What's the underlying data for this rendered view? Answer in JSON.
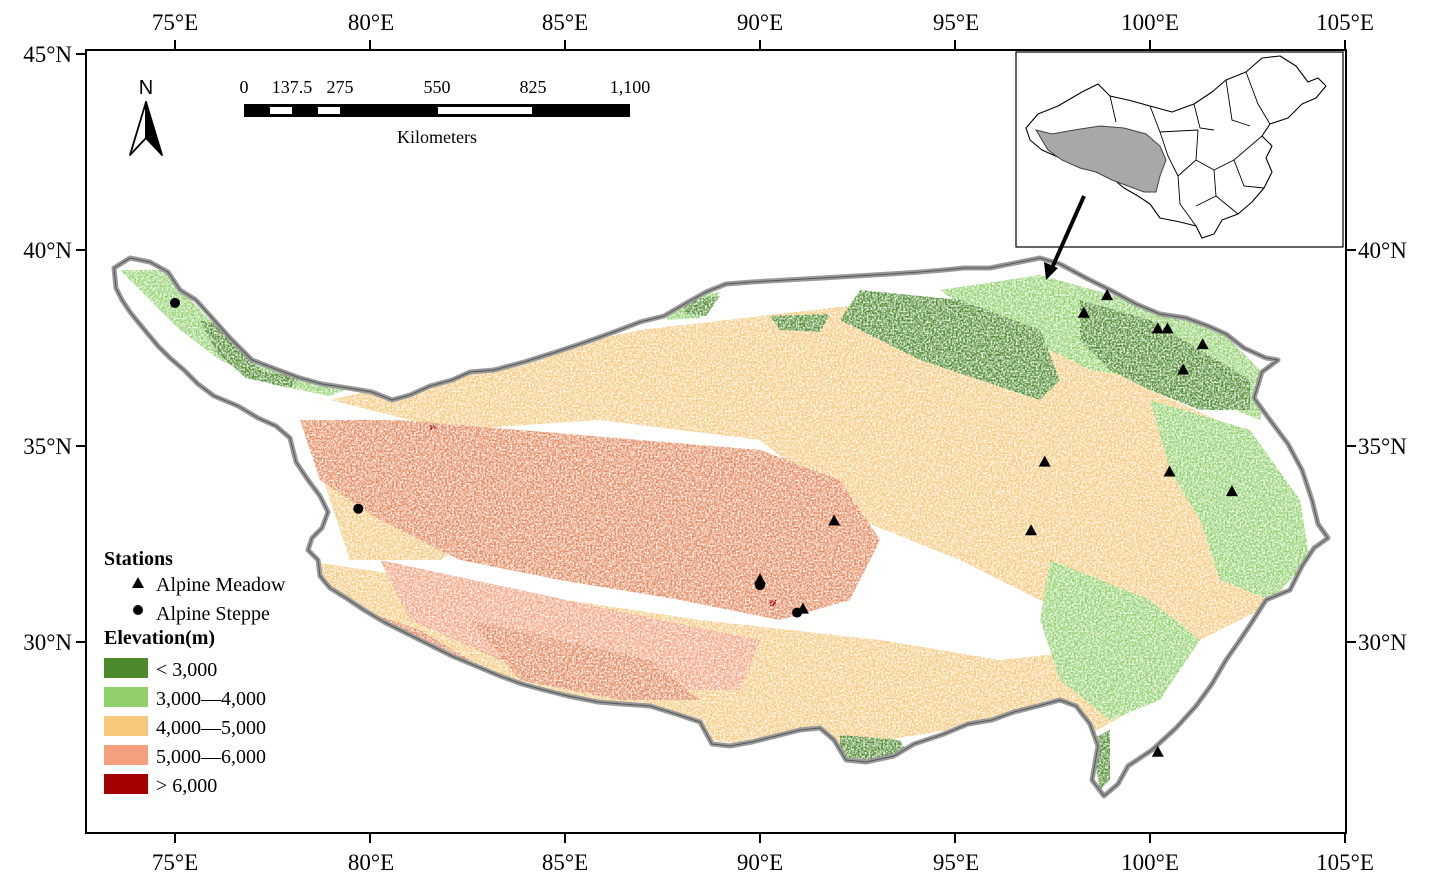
{
  "map": {
    "top_ticks": [
      "75°E",
      "80°E",
      "85°E",
      "90°E",
      "95°E",
      "100°E",
      "105°E"
    ],
    "bottom_ticks": [
      "75°E",
      "80°E",
      "85°E",
      "90°E",
      "95°E",
      "100°E",
      "105°E"
    ],
    "left_ticks": [
      "45°N",
      "40°N",
      "35°N",
      "30°N"
    ],
    "right_ticks": [
      "40°N",
      "35°N",
      "30°N"
    ],
    "north_arrow": "N",
    "scale_bar": {
      "labels": [
        "0",
        "137.5",
        "275",
        "550",
        "825",
        "1,100"
      ],
      "units": "Kilometers"
    },
    "legend": {
      "stations_title": "Stations",
      "stations": [
        {
          "symbol": "triangle",
          "label": "Alpine Meadow"
        },
        {
          "symbol": "circle",
          "label": "Alpine Steppe"
        }
      ],
      "elevation_title": "Elevation(m)",
      "elevation_classes": [
        {
          "label": "< 3,000",
          "color": "#4c8a2c"
        },
        {
          "label": "3,000—4,000",
          "color": "#8fd06a"
        },
        {
          "label": "4,000—5,000",
          "color": "#f6c87b"
        },
        {
          "label": "5,000—6,000",
          "color": "#f4a07d"
        },
        {
          "label": "> 6,000",
          "color": "#a50000"
        }
      ]
    },
    "colors": {
      "lt3000": "#4c8a2c",
      "c3000_4000": "#8fd06a",
      "c4000_5000": "#f6c87b",
      "c5000_6000": "#f4a07d",
      "gt6000": "#a50000",
      "dark_orange": "#e3875a",
      "boundary": "#9a9a9a",
      "inset_region": "#a8a8a8"
    },
    "stations": {
      "alpine_meadow": [
        [
          98.9,
          38.85
        ],
        [
          98.3,
          38.4
        ],
        [
          100.2,
          38.0
        ],
        [
          100.45,
          38.0
        ],
        [
          101.35,
          37.6
        ],
        [
          100.85,
          36.95
        ],
        [
          97.3,
          34.6
        ],
        [
          100.5,
          34.35
        ],
        [
          102.1,
          33.85
        ],
        [
          96.95,
          32.85
        ],
        [
          91.9,
          33.1
        ],
        [
          90.0,
          31.6
        ],
        [
          91.1,
          30.85
        ],
        [
          100.2,
          27.2
        ]
      ],
      "alpine_steppe": [
        [
          75.0,
          38.65
        ],
        [
          79.7,
          33.4
        ],
        [
          90.0,
          31.45
        ],
        [
          90.95,
          30.75
        ]
      ]
    }
  }
}
